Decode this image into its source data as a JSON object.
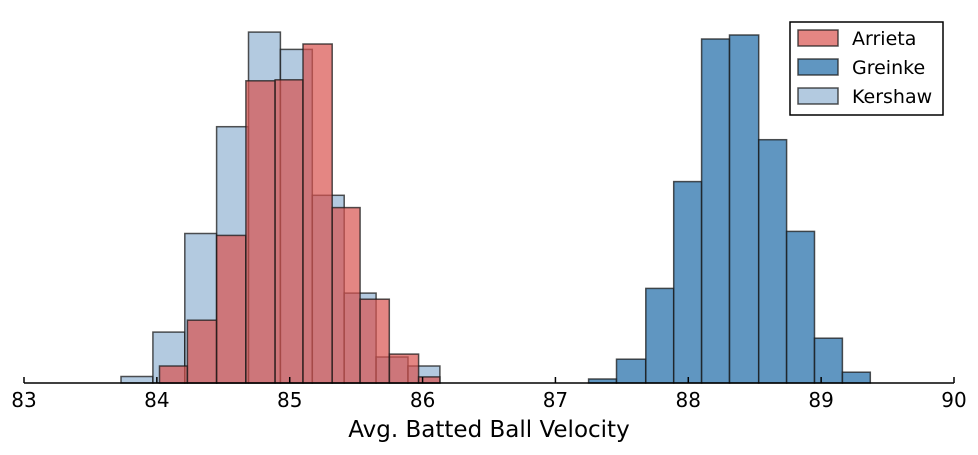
{
  "chart_data": {
    "type": "histogram",
    "title": "",
    "xlabel": "Avg. Batted Ball Velocity",
    "ylabel": "",
    "xlim": [
      83,
      90
    ],
    "ylim": [
      0,
      1
    ],
    "xticks": [
      83,
      84,
      85,
      86,
      87,
      88,
      89,
      90
    ],
    "xtick_labels": [
      "83",
      "84",
      "85",
      "86",
      "87",
      "88",
      "89",
      "90"
    ],
    "grid": false,
    "legend_position": "top-right",
    "series": [
      {
        "name": "Kershaw",
        "color": "#9ab8d6",
        "alpha": 0.75,
        "bins": [
          {
            "x0": 83.73,
            "x1": 83.97,
            "value": 0.018
          },
          {
            "x0": 83.97,
            "x1": 84.21,
            "value": 0.141
          },
          {
            "x0": 84.21,
            "x1": 84.45,
            "value": 0.414
          },
          {
            "x0": 84.45,
            "x1": 84.69,
            "value": 0.71
          },
          {
            "x0": 84.69,
            "x1": 84.93,
            "value": 0.972
          },
          {
            "x0": 84.93,
            "x1": 85.17,
            "value": 0.924
          },
          {
            "x0": 85.17,
            "x1": 85.41,
            "value": 0.52
          },
          {
            "x0": 85.41,
            "x1": 85.65,
            "value": 0.249
          },
          {
            "x0": 85.65,
            "x1": 85.89,
            "value": 0.072
          },
          {
            "x0": 85.89,
            "x1": 86.13,
            "value": 0.047
          }
        ]
      },
      {
        "name": "Arrieta",
        "color": "#d9534f",
        "alpha": 0.7,
        "bins": [
          {
            "x0": 84.02,
            "x1": 84.23,
            "value": 0.047
          },
          {
            "x0": 84.23,
            "x1": 84.45,
            "value": 0.174
          },
          {
            "x0": 84.45,
            "x1": 84.67,
            "value": 0.409
          },
          {
            "x0": 84.67,
            "x1": 84.89,
            "value": 0.837
          },
          {
            "x0": 84.89,
            "x1": 85.1,
            "value": 0.84
          },
          {
            "x0": 85.1,
            "x1": 85.32,
            "value": 0.939
          },
          {
            "x0": 85.32,
            "x1": 85.53,
            "value": 0.486
          },
          {
            "x0": 85.53,
            "x1": 85.75,
            "value": 0.232
          },
          {
            "x0": 85.75,
            "x1": 85.97,
            "value": 0.08
          },
          {
            "x0": 85.97,
            "x1": 86.13,
            "value": 0.017
          }
        ]
      },
      {
        "name": "Greinke",
        "color": "#3d7fb3",
        "alpha": 0.82,
        "bins": [
          {
            "x0": 87.25,
            "x1": 87.46,
            "value": 0.011
          },
          {
            "x0": 87.46,
            "x1": 87.68,
            "value": 0.066
          },
          {
            "x0": 87.68,
            "x1": 87.89,
            "value": 0.262
          },
          {
            "x0": 87.89,
            "x1": 88.1,
            "value": 0.558
          },
          {
            "x0": 88.1,
            "x1": 88.31,
            "value": 0.953
          },
          {
            "x0": 88.31,
            "x1": 88.53,
            "value": 0.964
          },
          {
            "x0": 88.53,
            "x1": 88.74,
            "value": 0.674
          },
          {
            "x0": 88.74,
            "x1": 88.95,
            "value": 0.42
          },
          {
            "x0": 88.95,
            "x1": 89.16,
            "value": 0.124
          },
          {
            "x0": 89.16,
            "x1": 89.37,
            "value": 0.03
          }
        ]
      }
    ],
    "legend": [
      {
        "label": "Arrieta",
        "color": "#d9534f",
        "alpha": 0.7
      },
      {
        "label": "Greinke",
        "color": "#3d7fb3",
        "alpha": 0.82
      },
      {
        "label": "Kershaw",
        "color": "#9ab8d6",
        "alpha": 0.75
      }
    ]
  }
}
